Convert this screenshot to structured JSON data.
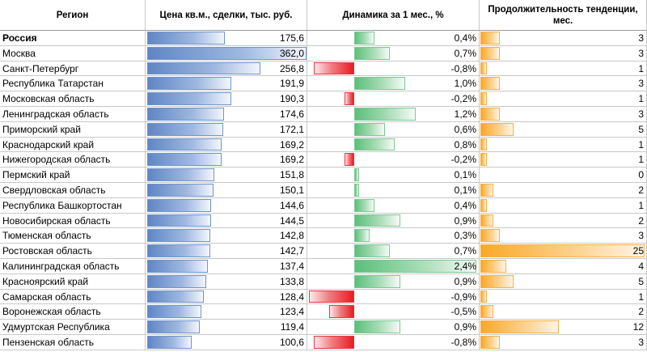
{
  "colors": {
    "price_bar": "#5f86c4",
    "change_positive": "#5cbf7b",
    "change_negative": "#e81c24",
    "duration_bar": "#f9a826"
  },
  "chart_data": {
    "type": "table",
    "columns": [
      "Регион",
      "Цена кв.м., сделки, тыс. руб.",
      "Динамика за 1 мес., %",
      "Продолжительность тенденции, мес."
    ],
    "rows": [
      {
        "region": "Россия",
        "price": 175.6,
        "price_text": "175,6",
        "change": 0.4,
        "change_text": "0,4%",
        "duration": 3,
        "duration_text": "3",
        "bold": true
      },
      {
        "region": "Москва",
        "price": 362.0,
        "price_text": "362,0",
        "change": 0.7,
        "change_text": "0,7%",
        "duration": 3,
        "duration_text": "3"
      },
      {
        "region": "Санкт-Петербург",
        "price": 256.8,
        "price_text": "256,8",
        "change": -0.8,
        "change_text": "-0,8%",
        "duration": 1,
        "duration_text": "1"
      },
      {
        "region": "Республика Татарстан",
        "price": 191.9,
        "price_text": "191,9",
        "change": 1.0,
        "change_text": "1,0%",
        "duration": 3,
        "duration_text": "3"
      },
      {
        "region": "Московская область",
        "price": 190.3,
        "price_text": "190,3",
        "change": -0.2,
        "change_text": "-0,2%",
        "duration": 1,
        "duration_text": "1"
      },
      {
        "region": "Ленинградская область",
        "price": 174.6,
        "price_text": "174,6",
        "change": 1.2,
        "change_text": "1,2%",
        "duration": 3,
        "duration_text": "3"
      },
      {
        "region": "Приморский край",
        "price": 172.1,
        "price_text": "172,1",
        "change": 0.6,
        "change_text": "0,6%",
        "duration": 5,
        "duration_text": "5"
      },
      {
        "region": "Краснодарский край",
        "price": 169.2,
        "price_text": "169,2",
        "change": 0.8,
        "change_text": "0,8%",
        "duration": 1,
        "duration_text": "1"
      },
      {
        "region": "Нижегородская область",
        "price": 169.2,
        "price_text": "169,2",
        "change": -0.2,
        "change_text": "-0,2%",
        "duration": 1,
        "duration_text": "1"
      },
      {
        "region": "Пермский край",
        "price": 151.8,
        "price_text": "151,8",
        "change": 0.1,
        "change_text": "0,1%",
        "duration": 0,
        "duration_text": "0"
      },
      {
        "region": "Свердловская область",
        "price": 150.1,
        "price_text": "150,1",
        "change": 0.1,
        "change_text": "0,1%",
        "duration": 2,
        "duration_text": "2"
      },
      {
        "region": "Республика Башкортостан",
        "price": 144.6,
        "price_text": "144,6",
        "change": 0.4,
        "change_text": "0,4%",
        "duration": 1,
        "duration_text": "1"
      },
      {
        "region": "Новосибирская область",
        "price": 144.5,
        "price_text": "144,5",
        "change": 0.9,
        "change_text": "0,9%",
        "duration": 2,
        "duration_text": "2"
      },
      {
        "region": "Тюменская область",
        "price": 142.8,
        "price_text": "142,8",
        "change": 0.3,
        "change_text": "0,3%",
        "duration": 3,
        "duration_text": "3"
      },
      {
        "region": "Ростовская область",
        "price": 142.7,
        "price_text": "142,7",
        "change": 0.7,
        "change_text": "0,7%",
        "duration": 25,
        "duration_text": "25"
      },
      {
        "region": "Калининградская область",
        "price": 137.4,
        "price_text": "137,4",
        "change": 2.4,
        "change_text": "2,4%",
        "duration": 4,
        "duration_text": "4"
      },
      {
        "region": "Красноярский край",
        "price": 133.8,
        "price_text": "133,8",
        "change": 0.9,
        "change_text": "0,9%",
        "duration": 5,
        "duration_text": "5"
      },
      {
        "region": "Самарская область",
        "price": 128.4,
        "price_text": "128,4",
        "change": -0.9,
        "change_text": "-0,9%",
        "duration": 1,
        "duration_text": "1"
      },
      {
        "region": "Воронежская область",
        "price": 123.4,
        "price_text": "123,4",
        "change": -0.5,
        "change_text": "-0,5%",
        "duration": 2,
        "duration_text": "2"
      },
      {
        "region": "Удмуртская Республика",
        "price": 119.4,
        "price_text": "119,4",
        "change": 0.9,
        "change_text": "0,9%",
        "duration": 12,
        "duration_text": "12"
      },
      {
        "region": "Пензенская область",
        "price": 100.6,
        "price_text": "100,6",
        "change": -0.8,
        "change_text": "-0,8%",
        "duration": 3,
        "duration_text": "3"
      }
    ]
  }
}
